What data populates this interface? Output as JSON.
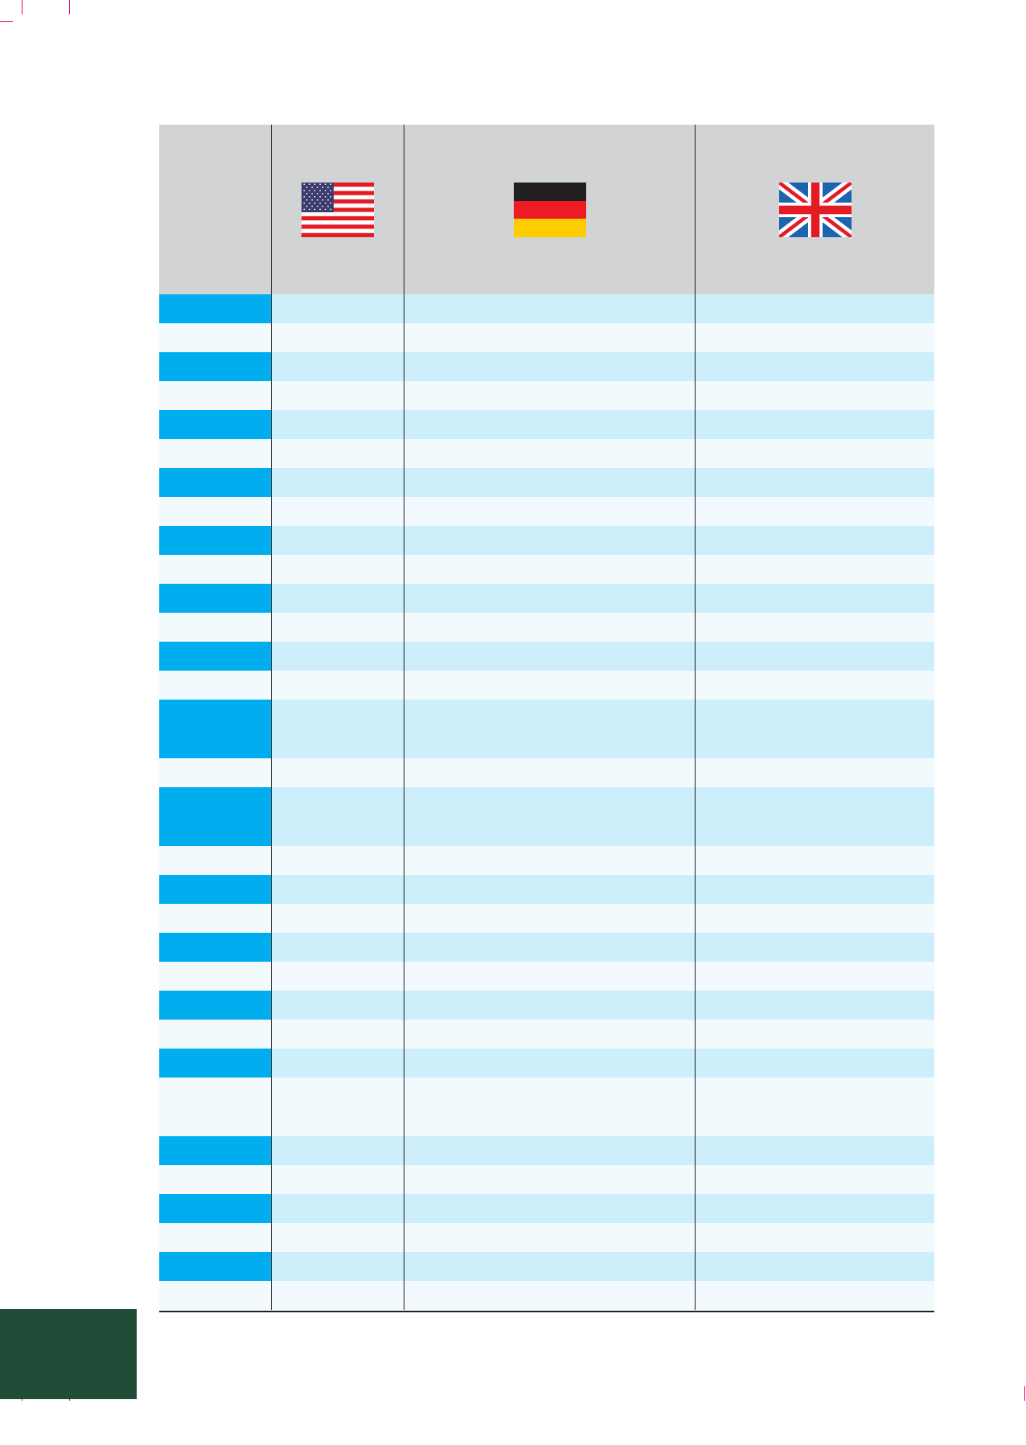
{
  "table": {
    "flags": [
      {
        "name": "usa-flag-icon",
        "colors": {
          "red": "#e31b23",
          "white": "#ffffff",
          "blue": "#3c3b6e"
        }
      },
      {
        "name": "germany-flag-icon",
        "colors": {
          "black": "#231f20",
          "red": "#ed1c24",
          "gold": "#ffcc00"
        }
      },
      {
        "name": "uk-flag-icon",
        "colors": {
          "blue": "#1d63ad",
          "red": "#e31b23",
          "white": "#ffffff"
        }
      }
    ],
    "rows": [
      {
        "tall": false,
        "cells": [
          "",
          "",
          "",
          ""
        ]
      },
      {
        "tall": false,
        "cells": [
          "",
          "",
          "",
          ""
        ]
      },
      {
        "tall": false,
        "cells": [
          "",
          "",
          "",
          ""
        ]
      },
      {
        "tall": false,
        "cells": [
          "",
          "",
          "",
          ""
        ]
      },
      {
        "tall": false,
        "cells": [
          "",
          "",
          "",
          ""
        ]
      },
      {
        "tall": false,
        "cells": [
          "",
          "",
          "",
          ""
        ]
      },
      {
        "tall": false,
        "cells": [
          "",
          "",
          "",
          ""
        ]
      },
      {
        "tall": false,
        "cells": [
          "",
          "",
          "",
          ""
        ]
      },
      {
        "tall": false,
        "cells": [
          "",
          "",
          "",
          ""
        ]
      },
      {
        "tall": false,
        "cells": [
          "",
          "",
          "",
          ""
        ]
      },
      {
        "tall": false,
        "cells": [
          "",
          "",
          "",
          ""
        ]
      },
      {
        "tall": false,
        "cells": [
          "",
          "",
          "",
          ""
        ]
      },
      {
        "tall": false,
        "cells": [
          "",
          "",
          "",
          ""
        ]
      },
      {
        "tall": false,
        "cells": [
          "",
          "",
          "",
          ""
        ]
      },
      {
        "tall": true,
        "cells": [
          "",
          "",
          "",
          ""
        ]
      },
      {
        "tall": false,
        "cells": [
          "",
          "",
          "",
          ""
        ]
      },
      {
        "tall": true,
        "cells": [
          "",
          "",
          "",
          ""
        ]
      },
      {
        "tall": false,
        "cells": [
          "",
          "",
          "",
          ""
        ]
      },
      {
        "tall": false,
        "cells": [
          "",
          "",
          "",
          ""
        ]
      },
      {
        "tall": false,
        "cells": [
          "",
          "",
          "",
          ""
        ]
      },
      {
        "tall": false,
        "cells": [
          "",
          "",
          "",
          ""
        ]
      },
      {
        "tall": false,
        "cells": [
          "",
          "",
          "",
          ""
        ]
      },
      {
        "tall": false,
        "cells": [
          "",
          "",
          "",
          ""
        ]
      },
      {
        "tall": false,
        "cells": [
          "",
          "",
          "",
          ""
        ]
      },
      {
        "tall": false,
        "cells": [
          "",
          "",
          "",
          ""
        ]
      },
      {
        "tall": true,
        "cells": [
          "",
          "",
          "",
          ""
        ]
      },
      {
        "tall": false,
        "cells": [
          "",
          "",
          "",
          ""
        ]
      },
      {
        "tall": false,
        "cells": [
          "",
          "",
          "",
          ""
        ]
      },
      {
        "tall": false,
        "cells": [
          "",
          "",
          "",
          ""
        ]
      },
      {
        "tall": false,
        "cells": [
          "",
          "",
          "",
          ""
        ]
      },
      {
        "tall": false,
        "cells": [
          "",
          "",
          "",
          ""
        ]
      },
      {
        "tall": false,
        "cells": [
          "",
          "",
          "",
          ""
        ]
      }
    ]
  }
}
